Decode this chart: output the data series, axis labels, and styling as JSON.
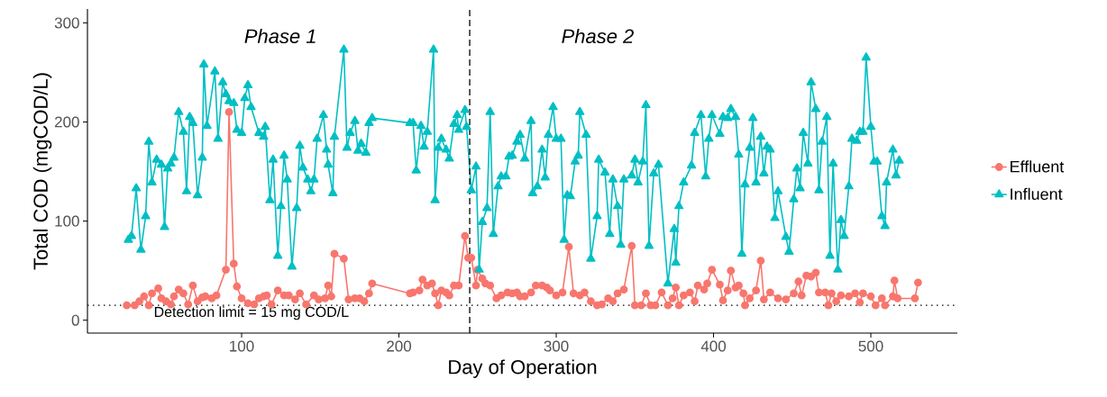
{
  "chart_data": {
    "type": "line",
    "xlabel": "Day of Operation",
    "ylabel": "Total COD (mgCOD/L)",
    "xlim": [
      2,
      555
    ],
    "ylim": [
      -13,
      314
    ],
    "xticks": [
      100,
      200,
      300,
      400,
      500
    ],
    "yticks": [
      0,
      100,
      200,
      300
    ],
    "grid": false,
    "legend": "right",
    "series": [
      {
        "name": "Effluent",
        "color": "#F8766D",
        "marker": "circle",
        "x": [
          27,
          32,
          35,
          38,
          41,
          43,
          47,
          49,
          52,
          55,
          57,
          60,
          63,
          66,
          69,
          72,
          75,
          77,
          81,
          84,
          90,
          92,
          95,
          97,
          100,
          104,
          108,
          111,
          114,
          116,
          119,
          123,
          127,
          130,
          134,
          137,
          141,
          146,
          149,
          153,
          155,
          157,
          159,
          165,
          168,
          172,
          175,
          178,
          181,
          183,
          207,
          209,
          213,
          215,
          218,
          221,
          223,
          225,
          227,
          230,
          232,
          235,
          238,
          242,
          244,
          246,
          249,
          250,
          253,
          255,
          258,
          262,
          265,
          269,
          272,
          275,
          277,
          280,
          284,
          287,
          291,
          294,
          296,
          300,
          304,
          308,
          311,
          315,
          318,
          322,
          326,
          329,
          333,
          336,
          339,
          343,
          348,
          350,
          354,
          357,
          360,
          363,
          367,
          371,
          374,
          376,
          378,
          381,
          385,
          388,
          390,
          394,
          396,
          399,
          404,
          406,
          409,
          411,
          414,
          416,
          419,
          420,
          423,
          427,
          430,
          432,
          436,
          441,
          446,
          451,
          454,
          456,
          459,
          462,
          465,
          467,
          471,
          473,
          475,
          478,
          481,
          486,
          490,
          493,
          495,
          500,
          503,
          507,
          509,
          514,
          515,
          517,
          528,
          530
        ],
        "values": [
          15,
          15,
          19,
          24,
          15,
          27,
          32,
          22,
          19,
          16,
          24,
          31,
          27,
          16,
          35,
          19,
          23,
          24,
          22,
          25,
          51,
          210,
          57,
          34,
          22,
          17,
          16,
          22,
          24,
          25,
          16,
          30,
          25,
          25,
          21,
          27,
          16,
          25,
          21,
          22,
          35,
          24,
          67,
          62,
          21,
          22,
          22,
          19,
          27,
          37,
          27,
          28,
          30,
          41,
          35,
          37,
          27,
          15,
          30,
          28,
          25,
          35,
          35,
          85,
          63,
          63,
          35,
          51,
          42,
          37,
          35,
          22,
          25,
          28,
          27,
          28,
          24,
          24,
          28,
          35,
          35,
          33,
          30,
          25,
          28,
          74,
          27,
          25,
          28,
          19,
          15,
          16,
          22,
          19,
          27,
          31,
          75,
          15,
          15,
          27,
          15,
          15,
          28,
          15,
          22,
          33,
          15,
          25,
          28,
          19,
          35,
          31,
          37,
          51,
          36,
          20,
          30,
          50,
          33,
          35,
          27,
          15,
          22,
          30,
          60,
          21,
          28,
          22,
          21,
          27,
          39,
          25,
          45,
          44,
          48,
          28,
          28,
          15,
          27,
          19,
          25,
          24,
          27,
          18,
          27,
          24,
          15,
          22,
          15,
          24,
          40,
          22,
          22,
          38
        ]
      },
      {
        "name": "Influent",
        "color": "#00BFC4",
        "marker": "triangle",
        "x": [
          28,
          30,
          33,
          36,
          39,
          41,
          43,
          46,
          49,
          51,
          53,
          55,
          57,
          60,
          63,
          65,
          67,
          69,
          72,
          75,
          76,
          78,
          83,
          85,
          88,
          90,
          92,
          95,
          97,
          100,
          102,
          104,
          106,
          111,
          114,
          115,
          118,
          120,
          123,
          125,
          127,
          129,
          132,
          135,
          137,
          139,
          142,
          144,
          146,
          148,
          152,
          154,
          155,
          158,
          159,
          165,
          167,
          169,
          172,
          174,
          176,
          179,
          181,
          183,
          207,
          209,
          211,
          214,
          216,
          218,
          222,
          223,
          225,
          227,
          230,
          232,
          235,
          237,
          238,
          242,
          243,
          246,
          249,
          251,
          253,
          256,
          258,
          260,
          263,
          265,
          268,
          270,
          272,
          275,
          277,
          280,
          284,
          285,
          288,
          291,
          293,
          295,
          298,
          300,
          303,
          305,
          307,
          309,
          312,
          314,
          315,
          319,
          322,
          326,
          327,
          331,
          334,
          336,
          339,
          341,
          343,
          348,
          350,
          352,
          355,
          357,
          359,
          362,
          365,
          371,
          375,
          376,
          378,
          381,
          386,
          388,
          392,
          395,
          397,
          399,
          404,
          406,
          409,
          411,
          414,
          416,
          418,
          420,
          423,
          425,
          427,
          430,
          432,
          434,
          436,
          439,
          441,
          446,
          448,
          451,
          453,
          455,
          457,
          460,
          462,
          465,
          467,
          469,
          472,
          474,
          476,
          479,
          481,
          483,
          486,
          488,
          491,
          493,
          495,
          497,
          500,
          502,
          504,
          507,
          509,
          510,
          514,
          516,
          518
        ],
        "values": [
          81,
          85,
          133,
          71,
          105,
          180,
          139,
          162,
          157,
          94,
          153,
          158,
          164,
          210,
          190,
          130,
          205,
          199,
          126,
          164,
          258,
          196,
          251,
          183,
          240,
          228,
          221,
          219,
          192,
          189,
          224,
          237,
          215,
          189,
          185,
          195,
          121,
          162,
          65,
          115,
          166,
          142,
          54,
          113,
          176,
          154,
          142,
          130,
          142,
          183,
          207,
          172,
          157,
          128,
          185,
          273,
          174,
          189,
          201,
          171,
          178,
          169,
          199,
          204,
          199,
          199,
          151,
          196,
          175,
          190,
          273,
          121,
          174,
          183,
          172,
          163,
          198,
          207,
          192,
          212,
          195,
          131,
          155,
          51,
          99,
          113,
          210,
          87,
          135,
          145,
          145,
          165,
          166,
          180,
          187,
          163,
          201,
          128,
          135,
          172,
          144,
          187,
          215,
          183,
          183,
          81,
          126,
          125,
          160,
          166,
          210,
          187,
          62,
          105,
          162,
          149,
          87,
          142,
          115,
          76,
          142,
          146,
          162,
          139,
          160,
          217,
          75,
          148,
          157,
          37,
          92,
          58,
          115,
          139,
          156,
          189,
          207,
          145,
          183,
          207,
          188,
          205,
          204,
          213,
          205,
          167,
          67,
          137,
          174,
          204,
          139,
          185,
          148,
          175,
          172,
          103,
          130,
          84,
          69,
          122,
          153,
          133,
          189,
          158,
          240,
          213,
          131,
          180,
          205,
          65,
          158,
          51,
          101,
          85,
          135,
          183,
          181,
          190,
          190,
          265,
          195,
          160,
          160,
          105,
          95,
          139,
          172,
          146,
          161
        ]
      }
    ],
    "ref_lines": [
      {
        "axis": "y",
        "value": 15,
        "label": "Detection limit = 15 mg COD/L",
        "color": "#000000",
        "line_style": "dotted"
      },
      {
        "axis": "x",
        "value": 245,
        "color": "#000000",
        "line_style": "dashed"
      }
    ],
    "annotations": [
      "Phase 1",
      "Phase 2"
    ]
  }
}
